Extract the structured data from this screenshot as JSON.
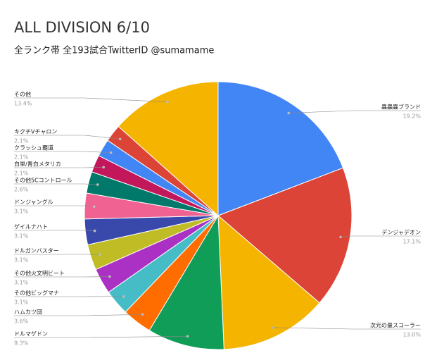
{
  "chart_data": {
    "type": "pie",
    "title": "ALL DIVISION 6/10",
    "subtitle": "全ランク帯 全193試合TwitterID @sumamame",
    "categories": [
      "蟲蟲蟲ブランド",
      "デンジャデオン",
      "次元の量スコーラー",
      "ドルマゲドン",
      "ハムカツ団",
      "その他ビッグマナ",
      "その他火文明ビート",
      "ドルガンバスター",
      "ゲイルナハト",
      "ドンジャングル",
      "その他5Cコントロール",
      "白単/青白メタリカ",
      "クラッシュ覇道",
      "キクチVチャロン",
      "その他"
    ],
    "values": [
      19.2,
      17.1,
      13.0,
      9.3,
      3.6,
      3.1,
      3.1,
      3.1,
      3.1,
      3.1,
      2.6,
      2.1,
      2.1,
      2.1,
      13.4
    ],
    "value_labels": [
      "19.2%",
      "17.1%",
      "13.0%",
      "9.3%",
      "3.6%",
      "3.1%",
      "3.1%",
      "3.1%",
      "3.1%",
      "3.1%",
      "2.6%",
      "2.1%",
      "2.1%",
      "2.1%",
      "13.4%"
    ],
    "colors": [
      "#4285f4",
      "#db4437",
      "#f4b400",
      "#0f9d58",
      "#ff6d00",
      "#46bdc6",
      "#ab30c4",
      "#c0bc26",
      "#3949ab",
      "#f06292",
      "#00796b",
      "#c2185b",
      "#4285f4",
      "#db4437",
      "#f4b400"
    ]
  }
}
